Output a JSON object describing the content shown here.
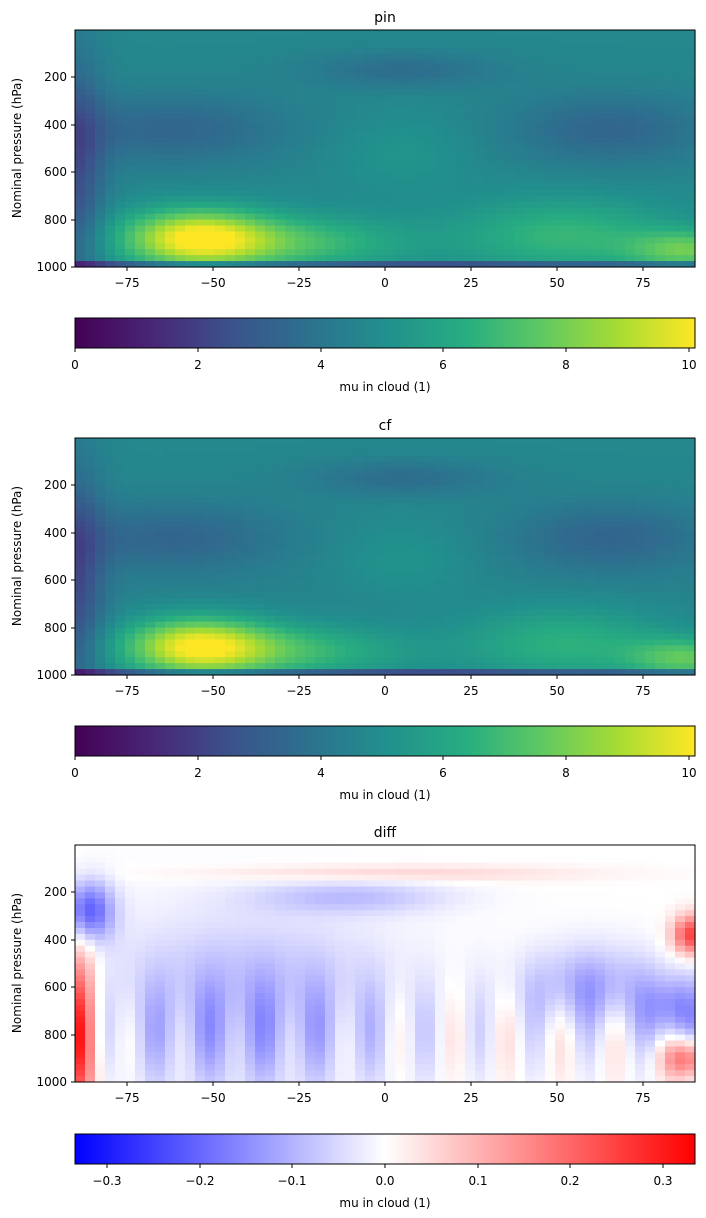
{
  "chart_data": [
    {
      "type": "heatmap",
      "title": "pin",
      "xlabel": "",
      "ylabel": "Nominal pressure (hPa)",
      "xlim": [
        -90,
        90
      ],
      "ylim": [
        1000,
        0
      ],
      "x_ticks": [
        "−75",
        "−50",
        "−25",
        "0",
        "25",
        "50",
        "75"
      ],
      "y_ticks": [
        "200",
        "400",
        "600",
        "800",
        "1000"
      ],
      "colormap": "viridis",
      "colorbar": {
        "label": "mu in cloud (1)",
        "range": [
          0,
          10.1
        ],
        "ticks": [
          "0",
          "2",
          "4",
          "6",
          "8",
          "10"
        ]
      },
      "grid": false
    },
    {
      "type": "heatmap",
      "title": "cf",
      "xlabel": "",
      "ylabel": "Nominal pressure (hPa)",
      "xlim": [
        -90,
        90
      ],
      "ylim": [
        1000,
        0
      ],
      "x_ticks": [
        "−75",
        "−50",
        "−25",
        "0",
        "25",
        "50",
        "75"
      ],
      "y_ticks": [
        "200",
        "400",
        "600",
        "800",
        "1000"
      ],
      "colormap": "viridis",
      "colorbar": {
        "label": "mu in cloud (1)",
        "range": [
          0,
          10.1
        ],
        "ticks": [
          "0",
          "2",
          "4",
          "6",
          "8",
          "10"
        ]
      },
      "grid": false
    },
    {
      "type": "heatmap",
      "title": "diff",
      "xlabel": "",
      "ylabel": "Nominal pressure (hPa)",
      "xlim": [
        -90,
        90
      ],
      "ylim": [
        1000,
        0
      ],
      "x_ticks": [
        "−75",
        "−50",
        "−25",
        "0",
        "25",
        "50",
        "75"
      ],
      "y_ticks": [
        "200",
        "400",
        "600",
        "800",
        "1000"
      ],
      "colormap": "bwr",
      "colorbar": {
        "label": "mu in cloud (1)",
        "range": [
          -0.335,
          0.335
        ],
        "ticks": [
          "−0.3",
          "−0.2",
          "−0.1",
          "0.0",
          "0.1",
          "0.2",
          "0.3"
        ]
      },
      "grid": false
    }
  ]
}
